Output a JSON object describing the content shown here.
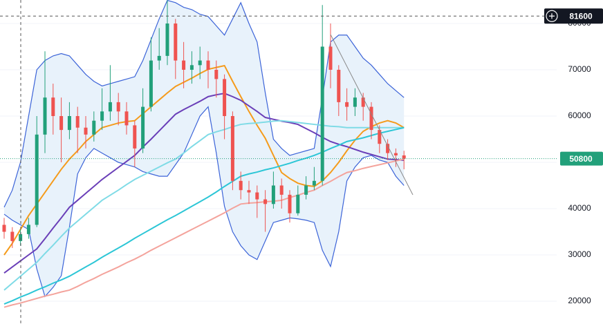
{
  "chart_data": {
    "type": "candlestick",
    "ylim": [
      15076,
      85075
    ],
    "yticks": [
      20000,
      30000,
      40000,
      50000,
      60000,
      70000,
      80000
    ],
    "grid": true,
    "up_color": "#22a07a",
    "down_color": "#ef5350",
    "ohlc": [
      [
        36500,
        38000,
        33500,
        35000
      ],
      [
        35000,
        36000,
        31500,
        33000
      ],
      [
        33000,
        35500,
        32000,
        34500
      ],
      [
        34500,
        38000,
        33500,
        36500
      ],
      [
        36500,
        60000,
        36000,
        56000
      ],
      [
        56000,
        74000,
        52000,
        64000
      ],
      [
        64000,
        67000,
        56000,
        60000
      ],
      [
        60000,
        64000,
        50000,
        57000
      ],
      [
        57000,
        63000,
        55000,
        60000
      ],
      [
        60000,
        62000,
        52000,
        57500
      ],
      [
        57500,
        60000,
        53000,
        56000
      ],
      [
        56000,
        61000,
        54500,
        59000
      ],
      [
        59000,
        66000,
        57000,
        61000
      ],
      [
        61000,
        71000,
        59000,
        63000
      ],
      [
        63000,
        65000,
        58000,
        61000
      ],
      [
        61000,
        63000,
        56000,
        58000
      ],
      [
        58000,
        59000,
        49000,
        53000
      ],
      [
        53000,
        66000,
        52000,
        62000
      ],
      [
        62000,
        77000,
        61000,
        72000
      ],
      [
        72000,
        79000,
        70000,
        73000
      ],
      [
        73000,
        85000,
        71000,
        80000
      ],
      [
        80000,
        81000,
        68000,
        72000
      ],
      [
        72000,
        76000,
        66000,
        70000
      ],
      [
        70000,
        74000,
        67000,
        71000
      ],
      [
        71000,
        75000,
        68000,
        72000
      ],
      [
        72000,
        74000,
        66000,
        70000
      ],
      [
        70000,
        72000,
        64000,
        68000
      ],
      [
        68000,
        69000,
        55000,
        60000
      ],
      [
        60000,
        61000,
        44000,
        46000
      ],
      [
        46000,
        48000,
        42000,
        44000
      ],
      [
        44000,
        46000,
        41000,
        43500
      ],
      [
        43500,
        45000,
        38000,
        42000
      ],
      [
        42000,
        44000,
        35000,
        41000
      ],
      [
        41000,
        48000,
        40000,
        45000
      ],
      [
        45000,
        46500,
        40000,
        43000
      ],
      [
        43000,
        44000,
        37000,
        39000
      ],
      [
        39000,
        45000,
        38500,
        43000
      ],
      [
        43000,
        47000,
        42000,
        45000
      ],
      [
        45000,
        49000,
        44000,
        46000
      ],
      [
        46000,
        84000,
        45000,
        75000
      ],
      [
        75000,
        80000,
        66000,
        70000
      ],
      [
        70000,
        71000,
        60000,
        63000
      ],
      [
        63000,
        66000,
        59000,
        62000
      ],
      [
        62000,
        66000,
        60000,
        64000
      ],
      [
        64000,
        65000,
        59000,
        62000
      ],
      [
        62000,
        63000,
        55000,
        57000
      ],
      [
        57000,
        58000,
        52000,
        54000
      ],
      [
        54000,
        55000,
        50500,
        52000
      ],
      [
        52000,
        53000,
        49000,
        51500
      ],
      [
        51500,
        52500,
        48500,
        50800
      ]
    ],
    "bands": {
      "fill": "#e8f2fb",
      "color": "#3b63d8",
      "upper": [
        40300,
        44000,
        50000,
        60000,
        70000,
        72000,
        73000,
        73500,
        73000,
        71000,
        69000,
        67500,
        66500,
        67000,
        67500,
        68000,
        68500,
        72000,
        76500,
        81000,
        85000,
        84500,
        83500,
        83000,
        82000,
        81500,
        79500,
        77500,
        81000,
        84500,
        80000,
        76000,
        65000,
        55000,
        53000,
        51500,
        52000,
        52500,
        53000,
        64000,
        76000,
        77500,
        77500,
        75000,
        72500,
        71000,
        69000,
        67000,
        65500,
        64000
      ],
      "lower": [
        38800,
        37500,
        36500,
        35500,
        27000,
        21000,
        23000,
        25500,
        36000,
        47500,
        51000,
        53000,
        52000,
        51000,
        50000,
        49500,
        49000,
        48000,
        47500,
        47000,
        47000,
        49500,
        52000,
        56000,
        60000,
        62000,
        52000,
        40500,
        35000,
        32000,
        30000,
        29000,
        33000,
        37000,
        37500,
        38000,
        37800,
        37500,
        37000,
        31000,
        27500,
        35000,
        46000,
        49000,
        51000,
        51500,
        50500,
        50000,
        47000,
        45000
      ]
    },
    "series": [
      {
        "color": "#f59b1b",
        "values": [
          30000,
          32500,
          35500,
          38500,
          41000,
          43500,
          46000,
          48500,
          50700,
          52500,
          54500,
          56000,
          57500,
          58000,
          58500,
          58800,
          59000,
          60500,
          62000,
          63500,
          65000,
          66400,
          67300,
          68200,
          69200,
          70100,
          70500,
          70900,
          67500,
          64200,
          61000,
          58000,
          55200,
          51500,
          47800,
          46500,
          45500,
          45000,
          44800,
          46000,
          47800,
          50000,
          52500,
          54800,
          56700,
          57700,
          58500,
          59000,
          58500,
          57500
        ]
      },
      {
        "color": "#6a3fb8",
        "values": [
          26100,
          27400,
          28700,
          30000,
          31300,
          33500,
          35800,
          38000,
          40300,
          41800,
          43300,
          44800,
          46300,
          47600,
          48900,
          50200,
          51500,
          53300,
          55000,
          56800,
          58600,
          60400,
          61400,
          62300,
          63200,
          64200,
          64600,
          64900,
          64200,
          63400,
          62200,
          61000,
          59700,
          59300,
          58900,
          58600,
          58200,
          57300,
          56400,
          55400,
          54500,
          53900,
          53400,
          52800,
          52200,
          51700,
          51200,
          50700,
          50600,
          50450
        ]
      },
      {
        "color": "#7fdbe6",
        "values": [
          22400,
          23900,
          25400,
          26900,
          28400,
          30300,
          32100,
          34000,
          35800,
          37300,
          38800,
          40300,
          41800,
          42900,
          44000,
          45200,
          46300,
          47200,
          48100,
          49000,
          49900,
          50700,
          52000,
          53400,
          54700,
          56000,
          56600,
          57100,
          57700,
          58200,
          58400,
          58500,
          58700,
          58900,
          59000,
          58800,
          58600,
          58400,
          58200,
          58000,
          57800,
          57700,
          57500,
          57500,
          57500,
          57500,
          57500,
          57500,
          57500,
          57500
        ]
      },
      {
        "color": "#2cc6d6",
        "values": [
          19400,
          20100,
          20900,
          21600,
          22400,
          23100,
          23900,
          24600,
          25400,
          26400,
          27400,
          28400,
          29500,
          30500,
          31500,
          32500,
          33600,
          34600,
          35600,
          36600,
          37600,
          38500,
          39500,
          40500,
          41500,
          42500,
          43600,
          44800,
          45900,
          47000,
          47500,
          47900,
          48400,
          48800,
          49300,
          49800,
          50400,
          50900,
          51500,
          52200,
          53000,
          53700,
          54500,
          54900,
          55300,
          55800,
          56300,
          56700,
          57100,
          57500
        ]
      },
      {
        "color": "#f4a39c",
        "values": [
          18700,
          19200,
          19600,
          20100,
          20600,
          21100,
          21500,
          22000,
          22400,
          23200,
          24100,
          24900,
          25800,
          26600,
          27400,
          28300,
          29100,
          30000,
          31000,
          31900,
          32800,
          33700,
          34600,
          35500,
          36400,
          37300,
          38200,
          39100,
          40100,
          41000,
          41200,
          41300,
          41500,
          41600,
          41800,
          42400,
          42900,
          43500,
          44000,
          45000,
          45900,
          46900,
          47800,
          48200,
          48700,
          49100,
          49500,
          49900,
          50300,
          50700
        ]
      }
    ],
    "crosshair_price": 81600,
    "last_price": 50800,
    "last_price_color": "#22a07a"
  }
}
